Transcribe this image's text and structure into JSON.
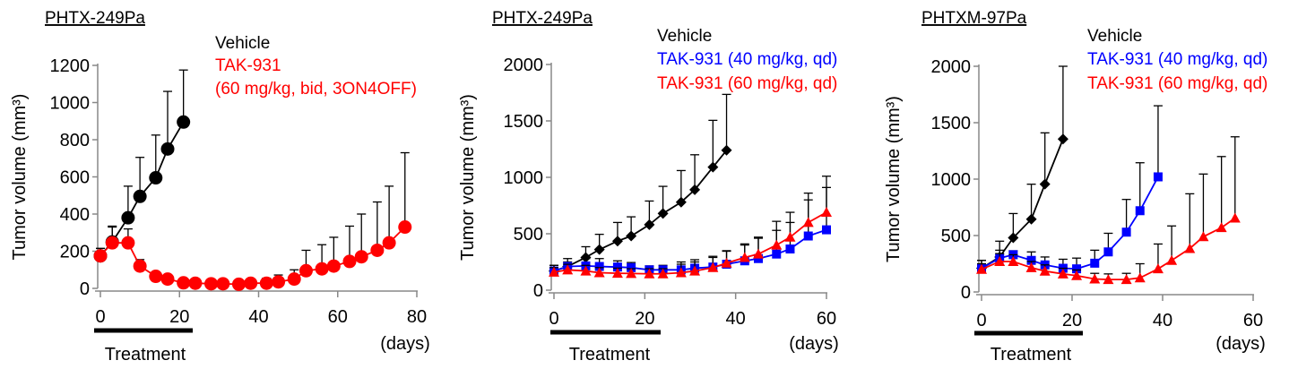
{
  "chart_data": [
    {
      "type": "line",
      "title": "PHTX-249Pa",
      "ylabel": "Tumor volume (mm³)",
      "xlabel": "(days)",
      "treatment_label": "Treatment",
      "treatment_days": [
        0,
        23
      ],
      "xlim": [
        0,
        80
      ],
      "ylim": [
        0,
        1200
      ],
      "xticks": [
        "0",
        "20",
        "40",
        "60",
        "80"
      ],
      "yticks": [
        "0",
        "200",
        "400",
        "600",
        "800",
        "1000",
        "1200"
      ],
      "legend": [
        "Vehicle",
        "TAK-931",
        "(60 mg/kg, bid, 3ON4OFF)"
      ],
      "series": [
        {
          "name": "Vehicle",
          "color": "#000000",
          "marker": "circle",
          "x": [
            0,
            3,
            7,
            10,
            14,
            17,
            21
          ],
          "y": [
            175,
            250,
            380,
            495,
            595,
            750,
            895
          ],
          "upper": [
            215,
            330,
            550,
            705,
            825,
            1060,
            1175
          ]
        },
        {
          "name": "TAK-931 (60 mg/kg, bid, 3ON4OFF)",
          "color": "#ff0000",
          "marker": "circle",
          "x": [
            0,
            3,
            7,
            10,
            14,
            17,
            21,
            24,
            28,
            31,
            35,
            38,
            42,
            45,
            49,
            52,
            56,
            59,
            63,
            66,
            70,
            73,
            77
          ],
          "y": [
            175,
            245,
            245,
            120,
            65,
            50,
            30,
            28,
            25,
            25,
            22,
            28,
            28,
            35,
            50,
            95,
            105,
            120,
            145,
            170,
            205,
            245,
            330
          ],
          "upper": [
            215,
            335,
            320,
            155,
            70,
            60,
            35,
            33,
            30,
            30,
            35,
            48,
            55,
            72,
            100,
            205,
            235,
            275,
            335,
            400,
            465,
            550,
            730
          ]
        }
      ]
    },
    {
      "type": "line",
      "title": "PHTX-249Pa",
      "ylabel": "Tumor volume (mm³)",
      "xlabel": "(days)",
      "treatment_label": "Treatment",
      "treatment_days": [
        0,
        23
      ],
      "xlim": [
        0,
        60
      ],
      "ylim": [
        0,
        2000
      ],
      "xticks": [
        "0",
        "20",
        "40",
        "60"
      ],
      "yticks": [
        "0",
        "500",
        "1000",
        "1500",
        "2000"
      ],
      "legend": [
        "Vehicle",
        "TAK-931 (40 mg/kg, qd)",
        "TAK-931 (60 mg/kg, qd)"
      ],
      "series": [
        {
          "name": "Vehicle",
          "color": "#000000",
          "marker": "diamond",
          "x": [
            0,
            3,
            7,
            10,
            14,
            17,
            21,
            24,
            28,
            31,
            35,
            38
          ],
          "y": [
            170,
            210,
            290,
            360,
            435,
            480,
            580,
            680,
            780,
            890,
            1090,
            1240
          ],
          "upper": [
            220,
            280,
            385,
            495,
            600,
            650,
            790,
            920,
            1060,
            1200,
            1505,
            1735
          ]
        },
        {
          "name": "TAK-931 (40 mg/kg, qd)",
          "color": "#0000ff",
          "marker": "square",
          "x": [
            0,
            3,
            7,
            10,
            14,
            17,
            21,
            24,
            28,
            31,
            35,
            38,
            42,
            45,
            49,
            52,
            56,
            60
          ],
          "y": [
            170,
            210,
            215,
            210,
            205,
            200,
            180,
            180,
            180,
            195,
            205,
            230,
            260,
            280,
            320,
            365,
            480,
            535
          ],
          "upper": [
            220,
            250,
            280,
            280,
            260,
            245,
            215,
            220,
            250,
            270,
            290,
            345,
            400,
            460,
            530,
            600,
            800,
            910
          ]
        },
        {
          "name": "TAK-931 (60 mg/kg, qd)",
          "color": "#ff0000",
          "marker": "triangle",
          "x": [
            0,
            3,
            7,
            10,
            14,
            17,
            21,
            24,
            28,
            31,
            35,
            38,
            42,
            45,
            49,
            52,
            56,
            60
          ],
          "y": [
            160,
            180,
            170,
            155,
            150,
            148,
            145,
            145,
            155,
            170,
            200,
            240,
            290,
            320,
            400,
            470,
            600,
            690
          ],
          "upper": [
            200,
            230,
            220,
            200,
            195,
            190,
            190,
            190,
            230,
            250,
            300,
            350,
            410,
            470,
            610,
            690,
            860,
            1010
          ]
        }
      ]
    },
    {
      "type": "line",
      "title": "PHTXM-97Pa",
      "ylabel": "Tumor volume (mm³)",
      "xlabel": "(days)",
      "treatment_label": "Treatment",
      "treatment_days": [
        0,
        22
      ],
      "xlim": [
        0,
        60
      ],
      "ylim": [
        0,
        2000
      ],
      "xticks": [
        "0",
        "20",
        "40",
        "60"
      ],
      "yticks": [
        "0",
        "500",
        "1000",
        "1500",
        "2000"
      ],
      "legend": [
        "Vehicle",
        "TAK-931 (40 mg/kg, qd)",
        "TAK-931 (60 mg/kg, qd)"
      ],
      "series": [
        {
          "name": "Vehicle",
          "color": "#000000",
          "marker": "diamond",
          "x": [
            0,
            4,
            7,
            11,
            14,
            18
          ],
          "y": [
            210,
            310,
            480,
            645,
            955,
            1355
          ],
          "upper": [
            280,
            450,
            695,
            955,
            1410,
            2000
          ]
        },
        {
          "name": "TAK-931 (40 mg/kg, qd)",
          "color": "#0000ff",
          "marker": "square",
          "x": [
            0,
            4,
            7,
            11,
            14,
            18,
            21,
            25,
            28,
            32,
            35,
            39
          ],
          "y": [
            210,
            300,
            330,
            280,
            240,
            210,
            205,
            255,
            355,
            530,
            720,
            1020
          ],
          "upper": [
            280,
            370,
            365,
            355,
            310,
            290,
            300,
            370,
            520,
            820,
            1145,
            1650
          ]
        },
        {
          "name": "TAK-931 (60 mg/kg, qd)",
          "color": "#ff0000",
          "marker": "triangle",
          "x": [
            0,
            4,
            7,
            11,
            14,
            18,
            21,
            25,
            28,
            32,
            35,
            39,
            42,
            46,
            49,
            53,
            56
          ],
          "y": [
            200,
            270,
            270,
            215,
            185,
            160,
            145,
            115,
            110,
            110,
            125,
            205,
            280,
            385,
            490,
            570,
            655
          ],
          "upper": [
            250,
            340,
            330,
            270,
            240,
            210,
            195,
            165,
            160,
            165,
            250,
            425,
            585,
            870,
            1045,
            1200,
            1375
          ]
        }
      ]
    }
  ]
}
